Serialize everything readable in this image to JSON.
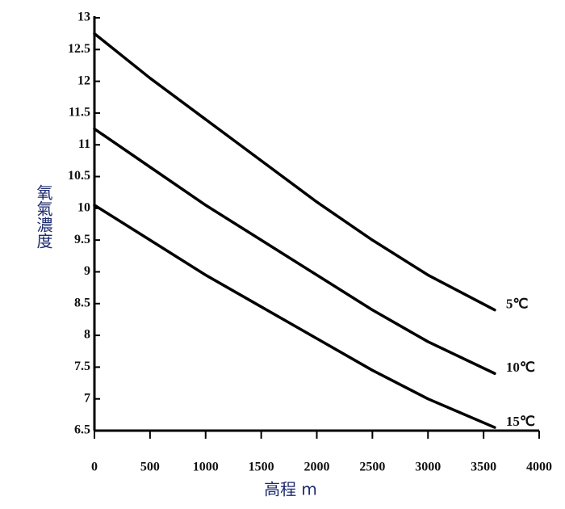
{
  "chart_data": {
    "type": "line",
    "x_label": "高程 m",
    "y_label": "氧氣濃度",
    "x": [
      0,
      500,
      1000,
      1500,
      2000,
      2500,
      3000,
      3600
    ],
    "series": [
      {
        "name": "5℃",
        "color": "#000000",
        "values": [
          12.75,
          12.05,
          11.4,
          10.75,
          10.1,
          9.5,
          8.95,
          8.4
        ]
      },
      {
        "name": "10℃",
        "color": "#000000",
        "values": [
          11.25,
          10.65,
          10.05,
          9.5,
          8.95,
          8.4,
          7.9,
          7.4
        ]
      },
      {
        "name": "15℃",
        "color": "#000000",
        "values": [
          10.05,
          9.5,
          8.95,
          8.45,
          7.95,
          7.45,
          7,
          6.55
        ]
      }
    ],
    "xlim": [
      0,
      4000
    ],
    "xticks": [
      0,
      500,
      1000,
      1500,
      2000,
      2500,
      3000,
      3500,
      4000
    ],
    "ylim": [
      6.5,
      13
    ],
    "yticks": [
      6.5,
      7,
      7.5,
      8,
      8.5,
      9,
      9.5,
      10,
      10.5,
      11,
      11.5,
      12,
      12.5,
      13
    ],
    "grid": false
  }
}
